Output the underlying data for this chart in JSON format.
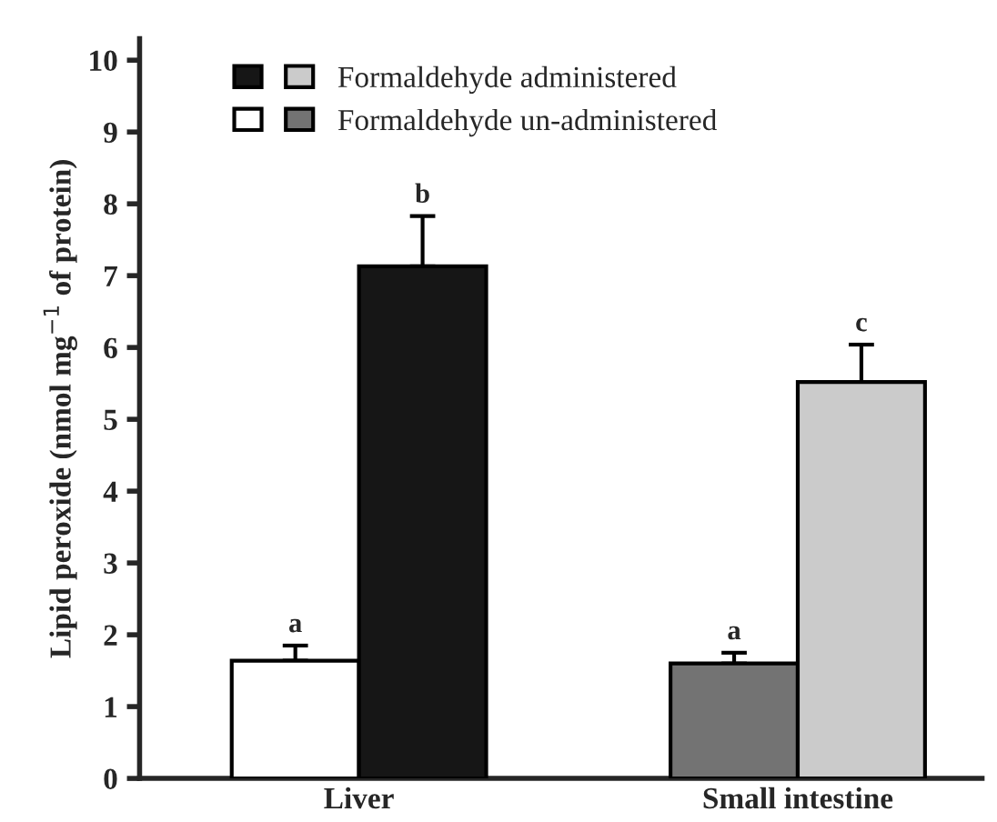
{
  "chart_data": {
    "type": "bar",
    "ylabel": "Lipid peroxide (nmol mg$^{−1}$ of protein)",
    "categories": [
      "Liver",
      "Small intestine"
    ],
    "series": [
      {
        "name": "Formaldehyde un-administered",
        "colors": [
          "#ffffff",
          "#737373"
        ],
        "values": [
          1.64,
          1.6
        ],
        "errors": [
          0.21,
          0.15
        ],
        "value_labels": [
          "a",
          "a"
        ]
      },
      {
        "name": "Formaldehyde administered",
        "colors": [
          "#161616",
          "#cbcbcb"
        ],
        "values": [
          7.13,
          5.52
        ],
        "errors": [
          0.7,
          0.52
        ],
        "value_labels": [
          "b",
          "c"
        ]
      }
    ],
    "ylim": [
      0,
      10.3
    ],
    "yticks": [
      0,
      1,
      2,
      3,
      4,
      5,
      6,
      7,
      8,
      9,
      10
    ],
    "grid": false,
    "legend": "top left"
  }
}
